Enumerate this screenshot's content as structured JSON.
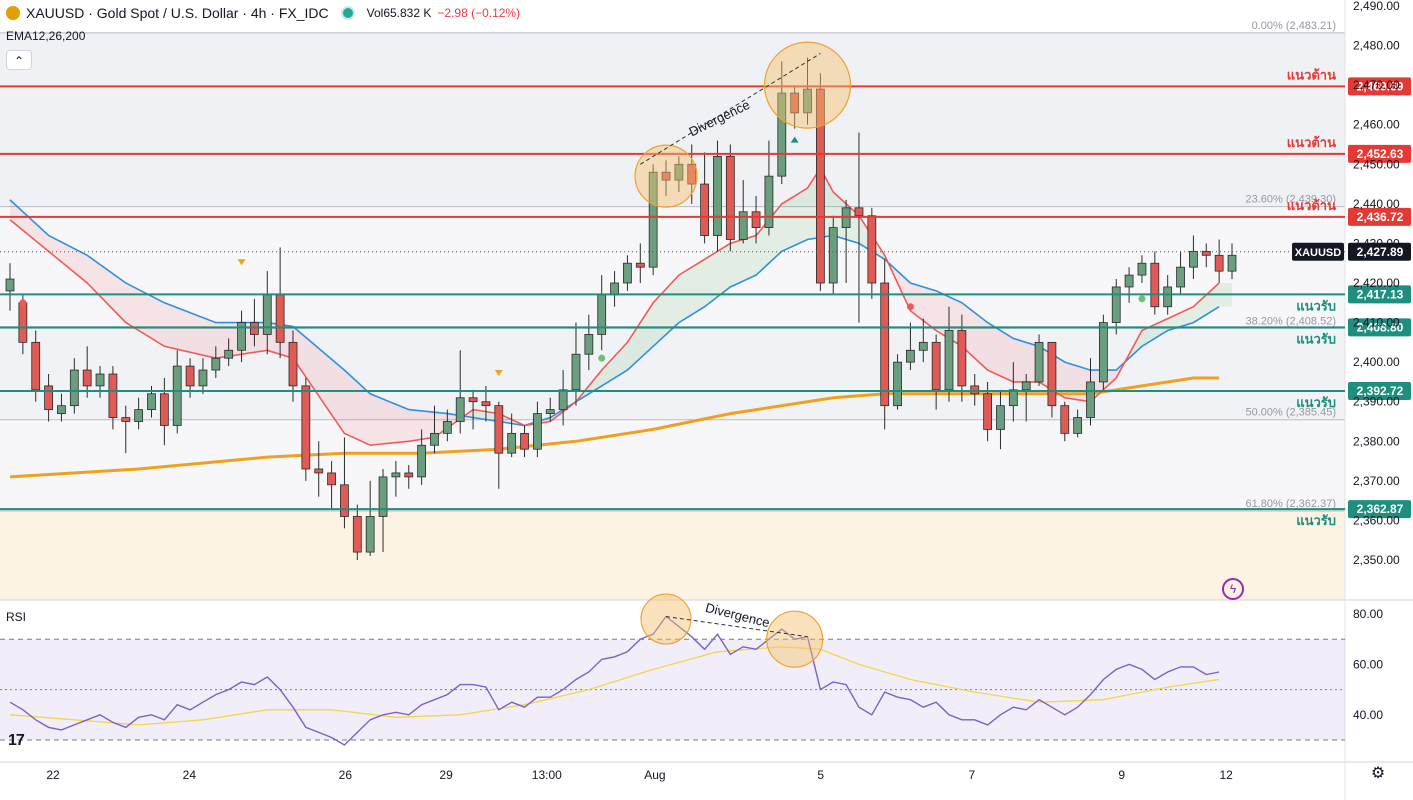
{
  "header": {
    "symbol_title": "XAUUSD · Gold Spot / U.S. Dollar · 4h · FX_IDC",
    "volume_label": "Vol",
    "volume_value": "65.832 K",
    "change": "−2.98 (−0.12%)",
    "indicator_label": "EMA12,26,200",
    "collapse_symbol": "⌃"
  },
  "rsi_panel": {
    "label": "RSI",
    "ticks": [
      "80.00",
      "60.00",
      "40.00"
    ],
    "divergence_label": "Divergence"
  },
  "colors": {
    "bull": "#6b9e7e",
    "bear": "#e05a56",
    "resistance": "#e53935",
    "support": "#1e8e7e",
    "ema12": "#f05a5a",
    "ema26": "#2f8fe0",
    "ema200": "#f0a020",
    "rsi": "#7b61c9",
    "rsi_ma": "#f2d64b",
    "highlight": "#f5c06a"
  },
  "icons": {
    "logo": "tradingview-logo-icon",
    "settings": "gear-icon",
    "alert": "lightning-icon"
  },
  "chart_data": {
    "type": "candlestick",
    "symbol": "XAUUSD",
    "timeframe": "4h",
    "price_axis": {
      "ticks": [
        "2,490.00",
        "2,480.00",
        "2,470.00",
        "2,460.00",
        "2,450.00",
        "2,440.00",
        "2,430.00",
        "2,420.00",
        "2,410.00",
        "2,400.00",
        "2,390.00",
        "2,380.00",
        "2,370.00",
        "2,360.00",
        "2,350.00"
      ],
      "ylim": [
        2344,
        2491
      ]
    },
    "x_axis": {
      "labels": [
        "22",
        "24",
        "26",
        "29",
        "13:00",
        "Aug",
        "5",
        "7",
        "9",
        "12"
      ]
    },
    "current_price": {
      "label": "XAUUSD",
      "value": 2427.89,
      "text": "2,427.89"
    },
    "levels": [
      {
        "kind": "resistance",
        "price": 2469.69,
        "text": "2,469.69",
        "name": "แนวต้าน"
      },
      {
        "kind": "resistance",
        "price": 2452.63,
        "text": "2,452.63",
        "name": "แนวต้าน"
      },
      {
        "kind": "resistance",
        "price": 2436.72,
        "text": "2,436.72",
        "name": "แนวต้าน"
      },
      {
        "kind": "support",
        "price": 2417.13,
        "text": "2,417.13",
        "name": "แนวรับ"
      },
      {
        "kind": "support",
        "price": 2408.8,
        "text": "2,408.80",
        "name": "แนวรับ"
      },
      {
        "kind": "support",
        "price": 2392.72,
        "text": "2,392.72",
        "name": "แนวรับ"
      },
      {
        "kind": "support",
        "price": 2362.87,
        "text": "2,362.87",
        "name": "แนวรับ"
      }
    ],
    "fib_levels": [
      {
        "price": 2483.21,
        "text": "0.00% (2,483.21)"
      },
      {
        "price": 2439.3,
        "text": "23.60% (2,439.30)"
      },
      {
        "price": 2408.52,
        "text": "38.20% (2,408.52)"
      },
      {
        "price": 2385.45,
        "text": "50.00% (2,385.45)"
      },
      {
        "price": 2362.37,
        "text": "61.80% (2,362.37)"
      }
    ],
    "annotations": [
      "Divergence"
    ],
    "candles": [
      [
        2418,
        2421,
        2413,
        2425
      ],
      [
        2415,
        2405,
        2402,
        2417
      ],
      [
        2405,
        2393,
        2390,
        2408
      ],
      [
        2394,
        2388,
        2385,
        2397
      ],
      [
        2387,
        2389,
        2385,
        2392
      ],
      [
        2389,
        2398,
        2387,
        2401
      ],
      [
        2398,
        2394,
        2391,
        2404
      ],
      [
        2394,
        2397,
        2391,
        2399
      ],
      [
        2397,
        2386,
        2383,
        2399
      ],
      [
        2386,
        2385,
        2377,
        2389
      ],
      [
        2385,
        2388,
        2383,
        2391
      ],
      [
        2388,
        2392,
        2386,
        2394
      ],
      [
        2392,
        2384,
        2379,
        2396
      ],
      [
        2384,
        2399,
        2382,
        2403
      ],
      [
        2399,
        2394,
        2391,
        2401
      ],
      [
        2394,
        2398,
        2392,
        2401
      ],
      [
        2398,
        2401,
        2396,
        2404
      ],
      [
        2401,
        2403,
        2399,
        2406
      ],
      [
        2403,
        2410,
        2400,
        2413
      ],
      [
        2410,
        2407,
        2404,
        2416
      ],
      [
        2407,
        2417,
        2402,
        2423
      ],
      [
        2417,
        2405,
        2401,
        2429
      ],
      [
        2405,
        2394,
        2390,
        2408
      ],
      [
        2394,
        2373,
        2370,
        2396
      ],
      [
        2373,
        2372,
        2366,
        2380
      ],
      [
        2372,
        2369,
        2363,
        2375
      ],
      [
        2369,
        2361,
        2358,
        2381
      ],
      [
        2361,
        2352,
        2350,
        2364
      ],
      [
        2352,
        2361,
        2351,
        2370
      ],
      [
        2361,
        2371,
        2352,
        2373
      ],
      [
        2371,
        2372,
        2366,
        2375
      ],
      [
        2372,
        2371,
        2368,
        2374
      ],
      [
        2371,
        2379,
        2369,
        2383
      ],
      [
        2379,
        2382,
        2377,
        2389
      ],
      [
        2382,
        2385,
        2380,
        2388
      ],
      [
        2385,
        2391,
        2382,
        2403
      ],
      [
        2391,
        2390,
        2383,
        2393
      ],
      [
        2390,
        2389,
        2385,
        2394
      ],
      [
        2389,
        2377,
        2368,
        2390
      ],
      [
        2377,
        2382,
        2376,
        2387
      ],
      [
        2382,
        2378,
        2376,
        2384
      ],
      [
        2378,
        2387,
        2376,
        2390
      ],
      [
        2387,
        2388,
        2385,
        2391
      ],
      [
        2388,
        2393,
        2384,
        2398
      ],
      [
        2393,
        2402,
        2389,
        2410
      ],
      [
        2402,
        2407,
        2398,
        2412
      ],
      [
        2407,
        2417,
        2403,
        2422
      ],
      [
        2417,
        2420,
        2414,
        2423
      ],
      [
        2420,
        2425,
        2418,
        2427
      ],
      [
        2425,
        2424,
        2420,
        2430
      ],
      [
        2424,
        2448,
        2422,
        2450
      ],
      [
        2448,
        2446,
        2442,
        2451
      ],
      [
        2446,
        2450,
        2443,
        2452
      ],
      [
        2450,
        2445,
        2440,
        2455
      ],
      [
        2445,
        2432,
        2430,
        2453
      ],
      [
        2432,
        2452,
        2428,
        2456
      ],
      [
        2452,
        2431,
        2428,
        2455
      ],
      [
        2431,
        2438,
        2430,
        2446
      ],
      [
        2438,
        2434,
        2430,
        2442
      ],
      [
        2434,
        2447,
        2432,
        2456
      ],
      [
        2447,
        2468,
        2445,
        2476
      ],
      [
        2468,
        2463,
        2459,
        2470
      ],
      [
        2463,
        2469,
        2460,
        2477
      ],
      [
        2469,
        2420,
        2418,
        2473
      ],
      [
        2420,
        2434,
        2417,
        2437
      ],
      [
        2434,
        2439,
        2420,
        2441
      ],
      [
        2439,
        2437,
        2410,
        2458
      ],
      [
        2437,
        2420,
        2416,
        2439
      ],
      [
        2420,
        2389,
        2383,
        2426
      ],
      [
        2389,
        2400,
        2388,
        2402
      ],
      [
        2400,
        2403,
        2398,
        2410
      ],
      [
        2403,
        2405,
        2400,
        2411
      ],
      [
        2405,
        2393,
        2388,
        2407
      ],
      [
        2393,
        2408,
        2390,
        2414
      ],
      [
        2408,
        2394,
        2390,
        2412
      ],
      [
        2394,
        2392,
        2389,
        2397
      ],
      [
        2392,
        2383,
        2380,
        2395
      ],
      [
        2383,
        2389,
        2378,
        2393
      ],
      [
        2389,
        2393,
        2385,
        2400
      ],
      [
        2393,
        2395,
        2385,
        2397
      ],
      [
        2395,
        2405,
        2394,
        2407
      ],
      [
        2405,
        2389,
        2386,
        2405
      ],
      [
        2389,
        2382,
        2380,
        2390
      ],
      [
        2382,
        2386,
        2381,
        2388
      ],
      [
        2386,
        2395,
        2384,
        2401
      ],
      [
        2395,
        2410,
        2393,
        2412
      ],
      [
        2410,
        2419,
        2407,
        2421
      ],
      [
        2419,
        2422,
        2415,
        2424
      ],
      [
        2422,
        2425,
        2420,
        2427
      ],
      [
        2425,
        2414,
        2412,
        2428
      ],
      [
        2414,
        2419,
        2412,
        2422
      ],
      [
        2419,
        2424,
        2417,
        2428
      ],
      [
        2424,
        2428,
        2421,
        2432
      ],
      [
        2428,
        2427,
        2424,
        2430
      ],
      [
        2427,
        2423,
        2420,
        2431
      ],
      [
        2423,
        2427,
        2421,
        2430
      ]
    ],
    "ema12": [
      [
        0,
        2436
      ],
      [
        6,
        2420
      ],
      [
        9,
        2410
      ],
      [
        12,
        2404
      ],
      [
        16,
        2401
      ],
      [
        20,
        2403
      ],
      [
        22,
        2401
      ],
      [
        26,
        2382
      ],
      [
        28,
        2379
      ],
      [
        31,
        2380
      ],
      [
        33,
        2381
      ],
      [
        36,
        2388
      ],
      [
        38,
        2387
      ],
      [
        40,
        2384
      ],
      [
        42,
        2385
      ],
      [
        44,
        2390
      ],
      [
        46,
        2398
      ],
      [
        48,
        2405
      ],
      [
        50,
        2415
      ],
      [
        52,
        2422
      ],
      [
        54,
        2426
      ],
      [
        56,
        2430
      ],
      [
        58,
        2432
      ],
      [
        60,
        2440
      ],
      [
        62,
        2444
      ],
      [
        63,
        2449
      ],
      [
        64,
        2443
      ],
      [
        66,
        2437
      ],
      [
        68,
        2427
      ],
      [
        70,
        2413
      ],
      [
        72,
        2408
      ],
      [
        74,
        2404
      ],
      [
        76,
        2398
      ],
      [
        78,
        2395
      ],
      [
        80,
        2395
      ],
      [
        82,
        2391
      ],
      [
        84,
        2390
      ],
      [
        86,
        2396
      ],
      [
        88,
        2408
      ],
      [
        90,
        2411
      ],
      [
        92,
        2414
      ],
      [
        94,
        2420
      ]
    ],
    "ema26": [
      [
        0,
        2441
      ],
      [
        3,
        2432
      ],
      [
        6,
        2427
      ],
      [
        9,
        2420
      ],
      [
        12,
        2415
      ],
      [
        16,
        2410
      ],
      [
        20,
        2410
      ],
      [
        22,
        2409
      ],
      [
        26,
        2398
      ],
      [
        28,
        2392
      ],
      [
        31,
        2388
      ],
      [
        34,
        2387
      ],
      [
        38,
        2385
      ],
      [
        40,
        2384
      ],
      [
        42,
        2386
      ],
      [
        44,
        2390
      ],
      [
        46,
        2394
      ],
      [
        48,
        2398
      ],
      [
        50,
        2404
      ],
      [
        52,
        2410
      ],
      [
        54,
        2414
      ],
      [
        56,
        2419
      ],
      [
        58,
        2422
      ],
      [
        60,
        2428
      ],
      [
        62,
        2431
      ],
      [
        64,
        2432
      ],
      [
        66,
        2430
      ],
      [
        68,
        2426
      ],
      [
        70,
        2420
      ],
      [
        72,
        2418
      ],
      [
        74,
        2415
      ],
      [
        76,
        2410
      ],
      [
        78,
        2406
      ],
      [
        80,
        2404
      ],
      [
        82,
        2400
      ],
      [
        84,
        2398
      ],
      [
        86,
        2398
      ],
      [
        88,
        2404
      ],
      [
        90,
        2408
      ],
      [
        92,
        2410
      ],
      [
        94,
        2414
      ]
    ],
    "ema200": [
      [
        0,
        2371
      ],
      [
        10,
        2373
      ],
      [
        20,
        2376
      ],
      [
        26,
        2377
      ],
      [
        32,
        2377
      ],
      [
        38,
        2378
      ],
      [
        44,
        2380
      ],
      [
        50,
        2383
      ],
      [
        56,
        2387
      ],
      [
        60,
        2389
      ],
      [
        64,
        2391
      ],
      [
        68,
        2392
      ],
      [
        72,
        2392
      ],
      [
        76,
        2392
      ],
      [
        80,
        2392
      ],
      [
        84,
        2392
      ],
      [
        88,
        2394
      ],
      [
        92,
        2396
      ],
      [
        94,
        2396
      ]
    ],
    "rsi": {
      "ylim": [
        20,
        85
      ],
      "bands": [
        70,
        50,
        30
      ],
      "values": [
        [
          0,
          45
        ],
        [
          1,
          42
        ],
        [
          2,
          38
        ],
        [
          3,
          35
        ],
        [
          4,
          34
        ],
        [
          5,
          36
        ],
        [
          6,
          38
        ],
        [
          7,
          40
        ],
        [
          8,
          37
        ],
        [
          9,
          35
        ],
        [
          10,
          39
        ],
        [
          11,
          40
        ],
        [
          12,
          38
        ],
        [
          13,
          44
        ],
        [
          14,
          42
        ],
        [
          15,
          45
        ],
        [
          16,
          48
        ],
        [
          17,
          50
        ],
        [
          18,
          53
        ],
        [
          19,
          52
        ],
        [
          20,
          55
        ],
        [
          21,
          50
        ],
        [
          22,
          43
        ],
        [
          23,
          35
        ],
        [
          24,
          33
        ],
        [
          25,
          31
        ],
        [
          26,
          28
        ],
        [
          27,
          33
        ],
        [
          28,
          38
        ],
        [
          29,
          40
        ],
        [
          30,
          41
        ],
        [
          31,
          40
        ],
        [
          32,
          44
        ],
        [
          33,
          46
        ],
        [
          34,
          48
        ],
        [
          35,
          52
        ],
        [
          36,
          52
        ],
        [
          37,
          51
        ],
        [
          38,
          42
        ],
        [
          39,
          45
        ],
        [
          40,
          43
        ],
        [
          41,
          47
        ],
        [
          42,
          47
        ],
        [
          43,
          50
        ],
        [
          44,
          54
        ],
        [
          45,
          57
        ],
        [
          46,
          62
        ],
        [
          47,
          63
        ],
        [
          48,
          65
        ],
        [
          49,
          70
        ],
        [
          50,
          72
        ],
        [
          51,
          79
        ],
        [
          52,
          75
        ],
        [
          53,
          71
        ],
        [
          54,
          66
        ],
        [
          55,
          72
        ],
        [
          56,
          64
        ],
        [
          57,
          67
        ],
        [
          58,
          66
        ],
        [
          59,
          70
        ],
        [
          60,
          74
        ],
        [
          61,
          70
        ],
        [
          62,
          71
        ],
        [
          63,
          50
        ],
        [
          64,
          53
        ],
        [
          65,
          52
        ],
        [
          66,
          43
        ],
        [
          67,
          40
        ],
        [
          68,
          49
        ],
        [
          69,
          47
        ],
        [
          70,
          46
        ],
        [
          71,
          43
        ],
        [
          72,
          45
        ],
        [
          73,
          40
        ],
        [
          74,
          38
        ],
        [
          75,
          38
        ],
        [
          76,
          36
        ],
        [
          77,
          40
        ],
        [
          78,
          43
        ],
        [
          79,
          42
        ],
        [
          80,
          46
        ],
        [
          81,
          43
        ],
        [
          82,
          40
        ],
        [
          83,
          43
        ],
        [
          84,
          48
        ],
        [
          85,
          54
        ],
        [
          86,
          58
        ],
        [
          87,
          60
        ],
        [
          88,
          58
        ],
        [
          89,
          54
        ],
        [
          90,
          57
        ],
        [
          91,
          59
        ],
        [
          92,
          59
        ],
        [
          93,
          56
        ],
        [
          94,
          57
        ]
      ],
      "ma": [
        [
          0,
          40
        ],
        [
          5,
          38
        ],
        [
          10,
          36
        ],
        [
          15,
          38
        ],
        [
          20,
          42
        ],
        [
          25,
          42
        ],
        [
          30,
          39
        ],
        [
          35,
          40
        ],
        [
          40,
          44
        ],
        [
          45,
          50
        ],
        [
          50,
          58
        ],
        [
          55,
          65
        ],
        [
          60,
          67
        ],
        [
          63,
          66
        ],
        [
          66,
          60
        ],
        [
          70,
          54
        ],
        [
          75,
          49
        ],
        [
          80,
          45
        ],
        [
          85,
          46
        ],
        [
          90,
          51
        ],
        [
          94,
          54
        ]
      ]
    }
  }
}
